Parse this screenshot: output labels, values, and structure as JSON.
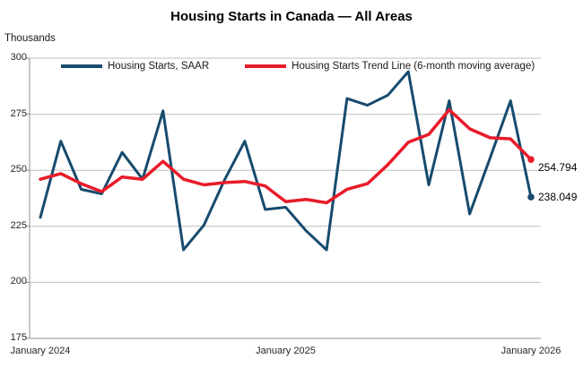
{
  "header": {
    "title": "Housing Starts in Canada — All Areas",
    "y_axis_title": "Thousands"
  },
  "legend": {
    "items": [
      {
        "label": "Housing Starts, SAAR",
        "color": "#174B6E"
      },
      {
        "label": "Housing Starts Trend Line (6-month moving average)",
        "color": "#E81B2A"
      }
    ]
  },
  "end_labels": {
    "saar": "238.049",
    "trend": "254.794"
  },
  "colors": {
    "saar_line": "#174B6E",
    "trend_line": "#E81B2A",
    "gridline": "#BFBFBF",
    "axis": "#8F8F8F",
    "text": "#262626"
  },
  "chart_data": {
    "type": "line",
    "title": "Housing Starts in Canada — All Areas",
    "ylabel": "Thousands",
    "ylim": [
      175,
      300
    ],
    "yticks": [
      175,
      200,
      225,
      250,
      275,
      300
    ],
    "grid": "horizontal",
    "legend_position": "top-inside",
    "x": [
      "Jan 2024",
      "Feb 2024",
      "Mar 2024",
      "Apr 2024",
      "May 2024",
      "Jun 2024",
      "Jul 2024",
      "Aug 2024",
      "Sep 2024",
      "Oct 2024",
      "Nov 2024",
      "Dec 2024",
      "Jan 2025",
      "Feb 2025",
      "Mar 2025",
      "Apr 2025",
      "May 2025",
      "Jun 2025",
      "Jul 2025",
      "Aug 2025",
      "Sep 2025",
      "Oct 2025",
      "Nov 2025",
      "Dec 2025",
      "Jan 2026"
    ],
    "xtick_labels": [
      "January 2024",
      "January 2025",
      "January 2026"
    ],
    "xtick_indices": [
      0,
      12,
      24
    ],
    "series": [
      {
        "name": "Housing Starts, SAAR",
        "color": "#174B6E",
        "end_label": "238.049",
        "values": [
          229,
          263,
          241.5,
          239.5,
          258,
          246,
          276.5,
          214.5,
          225.5,
          245.5,
          263,
          232.5,
          233.5,
          223,
          214.5,
          282,
          279,
          283.5,
          294,
          243.5,
          281,
          230.5,
          255.5,
          281,
          238.049
        ]
      },
      {
        "name": "Housing Starts Trend Line (6-month moving average)",
        "color": "#E81B2A",
        "end_label": "254.794",
        "values": [
          246,
          248.5,
          244,
          240.5,
          247,
          246,
          254,
          246,
          243.5,
          244.5,
          245,
          243,
          236,
          237,
          235.5,
          241.5,
          244,
          252.5,
          262.5,
          266,
          277,
          268.5,
          264.5,
          264,
          254.794
        ]
      }
    ]
  }
}
